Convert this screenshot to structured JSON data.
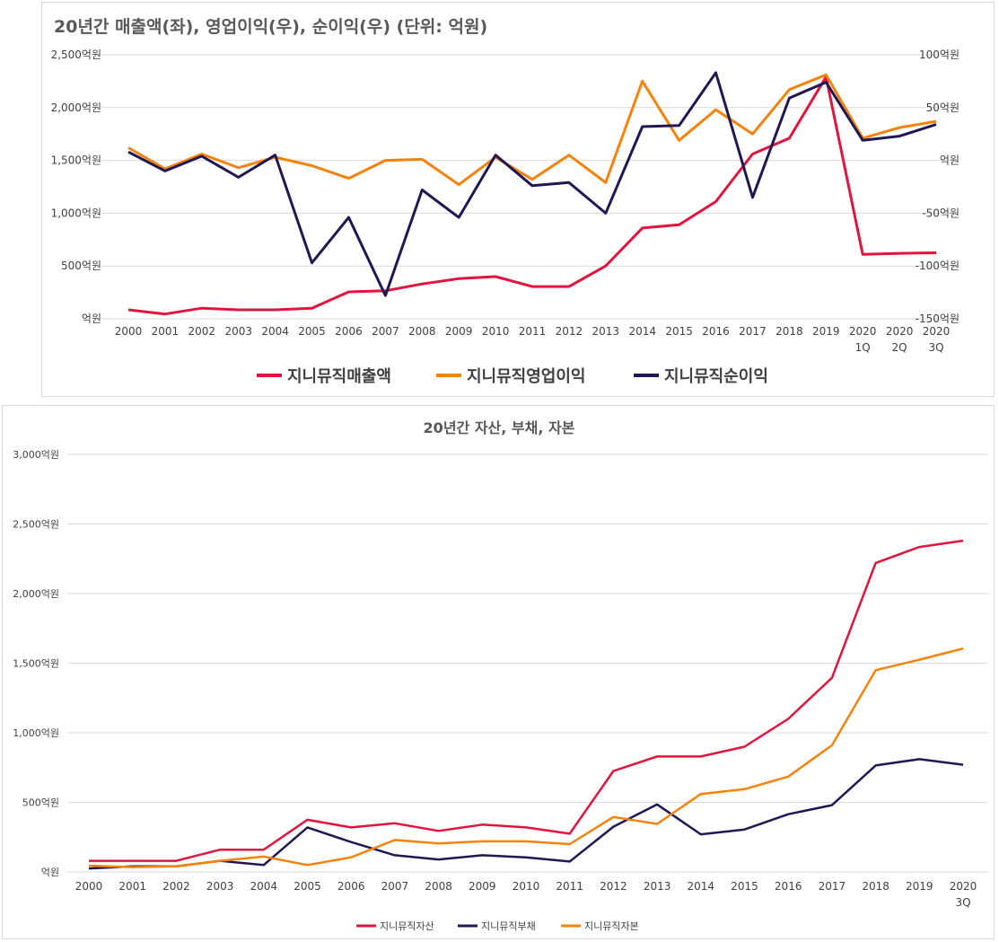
{
  "chart_data": [
    {
      "type": "line",
      "title": "20년간 매출액(좌), 영업이익(우), 순이익(우) (단위: 억원)",
      "categories": [
        [
          "2000"
        ],
        [
          "2001"
        ],
        [
          "2002"
        ],
        [
          "2003"
        ],
        [
          "2004"
        ],
        [
          "2005"
        ],
        [
          "2006"
        ],
        [
          "2007"
        ],
        [
          "2008"
        ],
        [
          "2009"
        ],
        [
          "2010"
        ],
        [
          "2011"
        ],
        [
          "2012"
        ],
        [
          "2013"
        ],
        [
          "2014"
        ],
        [
          "2015"
        ],
        [
          "2016"
        ],
        [
          "2017"
        ],
        [
          "2018"
        ],
        [
          "2019"
        ],
        [
          "2020",
          "1Q"
        ],
        [
          "2020",
          "2Q"
        ],
        [
          "2020",
          "3Q"
        ]
      ],
      "y_left": {
        "ticks": [
          "2,500억원",
          "2,000억원",
          "1,500억원",
          "1,000억원",
          "500억원",
          "억원"
        ],
        "ylim": [
          0,
          2500
        ]
      },
      "y_right": {
        "ticks": [
          "100억원",
          "50억원",
          "억원",
          "-50억원",
          "-100억원",
          "-150억원"
        ],
        "ylim": [
          -150,
          100
        ]
      },
      "grid": true,
      "legend_position": "bottom",
      "series": [
        {
          "name": "지니뮤직매출액",
          "axis": "left",
          "color": "#e0143c",
          "values": [
            85,
            45,
            100,
            85,
            85,
            100,
            255,
            265,
            330,
            380,
            400,
            305,
            305,
            500,
            860,
            890,
            1110,
            1560,
            1710,
            2290,
            610,
            620,
            625
          ]
        },
        {
          "name": "지니뮤직영업이익",
          "axis": "right",
          "color": "#f5820a",
          "values": [
            12,
            -8,
            6,
            -7,
            3,
            -5,
            -17,
            0,
            1,
            -23,
            3,
            -18,
            5,
            -21,
            75,
            19,
            48,
            25,
            67,
            81,
            21,
            31,
            37
          ]
        },
        {
          "name": "지니뮤직순이익",
          "axis": "right",
          "color": "#1f1853",
          "values": [
            8,
            -10,
            4,
            -16,
            5,
            -97,
            -54,
            -128,
            -28,
            -54,
            5,
            -24,
            -21,
            -50,
            32,
            33,
            83,
            -35,
            59,
            74,
            19,
            23,
            34
          ]
        }
      ]
    },
    {
      "type": "line",
      "title": "20년간 자산, 부채, 자본",
      "categories": [
        [
          "2000"
        ],
        [
          "2001"
        ],
        [
          "2002"
        ],
        [
          "2003"
        ],
        [
          "2004"
        ],
        [
          "2005"
        ],
        [
          "2006"
        ],
        [
          "2007"
        ],
        [
          "2008"
        ],
        [
          "2009"
        ],
        [
          "2010"
        ],
        [
          "2011"
        ],
        [
          "2012"
        ],
        [
          "2013"
        ],
        [
          "2014"
        ],
        [
          "2015"
        ],
        [
          "2016"
        ],
        [
          "2017"
        ],
        [
          "2018"
        ],
        [
          "2019"
        ],
        [
          "2020",
          "3Q"
        ]
      ],
      "y": {
        "ticks": [
          "3,000억원",
          "2,500억원",
          "2,000억원",
          "1,500억원",
          "1,000억원",
          "500억원",
          "억원"
        ],
        "ylim": [
          0,
          3000
        ]
      },
      "grid": true,
      "legend_position": "bottom",
      "series": [
        {
          "name": "지니뮤직자산",
          "color": "#e0143c",
          "values": [
            80,
            80,
            80,
            160,
            160,
            375,
            320,
            350,
            295,
            340,
            320,
            275,
            725,
            830,
            830,
            900,
            1100,
            1395,
            2220,
            2335,
            2380
          ]
        },
        {
          "name": "지니뮤직부채",
          "color": "#1f1853",
          "values": [
            25,
            40,
            40,
            80,
            50,
            320,
            215,
            120,
            90,
            120,
            105,
            75,
            325,
            485,
            270,
            305,
            415,
            480,
            765,
            810,
            770
          ]
        },
        {
          "name": "지니뮤직자본",
          "color": "#f5820a",
          "values": [
            45,
            35,
            40,
            80,
            110,
            50,
            105,
            230,
            205,
            220,
            220,
            200,
            395,
            345,
            560,
            595,
            685,
            910,
            1450,
            1525,
            1605
          ]
        }
      ]
    }
  ]
}
